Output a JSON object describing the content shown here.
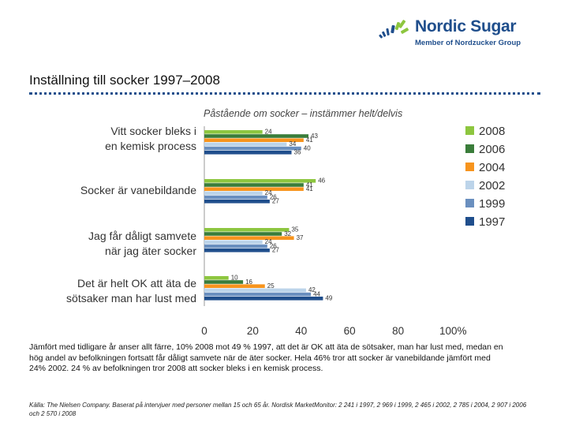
{
  "logo": {
    "name": "Nordic Sugar",
    "tagline": "Member of Nordzucker Group"
  },
  "slide_title": "Inställning till socker 1997–2008",
  "chart_data": {
    "type": "bar",
    "orientation": "horizontal",
    "title": "Påstående om socker – instämmer helt/delvis",
    "categories": [
      "Vitt socker bleks i en kemisk process",
      "Socker är vanebildande",
      "Jag får dåligt samvete när jag äter socker",
      "Det är helt OK att äta de sötsaker man har lust med"
    ],
    "series": [
      {
        "name": "2008",
        "color": "#8dc63f",
        "values": [
          24,
          46,
          35,
          10
        ]
      },
      {
        "name": "2006",
        "color": "#3a7d3a",
        "values": [
          43,
          41,
          32,
          16
        ]
      },
      {
        "name": "2004",
        "color": "#f7941d",
        "values": [
          41,
          41,
          37,
          25
        ]
      },
      {
        "name": "2002",
        "color": "#bcd4ea",
        "values": [
          34,
          24,
          24,
          42
        ]
      },
      {
        "name": "1999",
        "color": "#6a8fbf",
        "values": [
          40,
          26,
          26,
          44
        ]
      },
      {
        "name": "1997",
        "color": "#1f4e8c",
        "values": [
          36,
          27,
          27,
          49
        ]
      }
    ],
    "value_labels": [
      [
        "24",
        "43",
        "41",
        "34",
        "40",
        "36"
      ],
      [
        "46",
        "41",
        "41",
        "24",
        "26",
        "27"
      ],
      [
        "35",
        "32",
        "37",
        "24",
        "26",
        "27"
      ],
      [
        "10",
        "16",
        "25",
        "42",
        "44",
        "49"
      ]
    ],
    "x_ticks": [
      "0",
      "20",
      "40",
      "60",
      "80",
      "100%"
    ],
    "xlim": [
      0,
      100
    ],
    "legend_position": "right"
  },
  "body_text": "Jämfört med tidligare år anser allt färre, 10% 2008 mot 49 % 1997, att det är OK att äta de sötsaker, man har lust med, medan en hög andel av befolkningen fortsatt får dåligt samvete när de äter socker. Hela 46% tror att socker är vanebildande jämfört med  24% 2002. 24 % av befolkningen tror 2008 att socker bleks i en kemisk process.",
  "source_text": "Källa: The Nielsen Company. Baserat på intervjuer med personer mellan 15 och 65 år. Nordisk MarketMonitor: 2 241 i 1997, 2 969 i 1999, 2 465 i 2002, 2 785 i 2004, 2 907 i 2006 och 2 570 i 2008"
}
